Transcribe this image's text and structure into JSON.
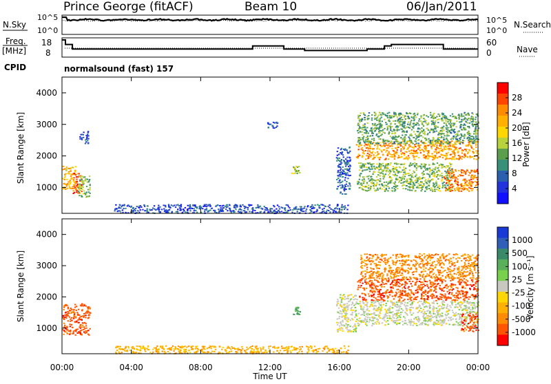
{
  "header": {
    "station": "Prince George (fitACF)",
    "beam": "Beam 10",
    "date": "06/Jan/2011"
  },
  "noise_panel": {
    "left_label": "N.Sky",
    "left_ticks": [
      "10^5",
      "10^0"
    ],
    "right_label": "N.Search",
    "right_ticks": [
      "10^5",
      "10^0"
    ]
  },
  "freq_panel": {
    "left_label_1": "Freq.",
    "left_label_2": "[MHz]",
    "left_ticks": [
      "18",
      "8"
    ],
    "right_label": "Nave",
    "right_ticks": [
      "60",
      "0"
    ],
    "cpid_label": "CPID",
    "cpid_value": "normalsound (fast) 157"
  },
  "time_axis": {
    "label": "Time UT",
    "ticks": [
      "00:00",
      "04:00",
      "08:00",
      "12:00",
      "16:00",
      "20:00",
      "00:00"
    ]
  },
  "power_panel": {
    "ylabel": "Slant Range [km]",
    "yticks": [
      "4000",
      "3000",
      "2000",
      "1000"
    ],
    "colorbar_label": "Power [dB]",
    "colorbar_ticks": [
      "28",
      "24",
      "20",
      "16",
      "12",
      "8",
      "4"
    ],
    "colors": [
      "#ff0000",
      "#ff4500",
      "#ff8c00",
      "#ffb000",
      "#ffd700",
      "#b8d23c",
      "#5a9e4e",
      "#3a8f7a",
      "#2a5fb0",
      "#2233dd",
      "#1010ff"
    ]
  },
  "velocity_panel": {
    "ylabel": "Slant Range [km]",
    "yticks": [
      "4000",
      "3000",
      "2000",
      "1000"
    ],
    "colorbar_label": "Velocity [m s⁻¹]",
    "colorbar_ticks": [
      "1000",
      "500",
      "100",
      "25",
      "-25",
      "-100",
      "-500",
      "-1000"
    ],
    "colors": [
      "#1a3ad6",
      "#2f5fb8",
      "#3a8a6a",
      "#5ab05a",
      "#78d04c",
      "#c8c8c0",
      "#ffd700",
      "#ffb000",
      "#ff8c00",
      "#ff5500",
      "#ff0000"
    ]
  },
  "chart_data": {
    "type": "heatmap",
    "x_range_hours": [
      0,
      24
    ],
    "y_range_km": [
      180,
      4500
    ],
    "power_regions": [
      {
        "t0": 0.0,
        "t1": 0.8,
        "r0": 900,
        "r1": 1700,
        "db": 22
      },
      {
        "t0": 0.6,
        "t1": 1.1,
        "r0": 800,
        "r1": 1500,
        "db": 28
      },
      {
        "t0": 0.9,
        "t1": 1.6,
        "r0": 700,
        "r1": 1400,
        "db": 14
      },
      {
        "t0": 1.0,
        "t1": 1.5,
        "r0": 2400,
        "r1": 2800,
        "db": 6
      },
      {
        "t0": 3.0,
        "t1": 16.5,
        "r0": 200,
        "r1": 480,
        "db": 5
      },
      {
        "t0": 11.8,
        "t1": 12.4,
        "r0": 2900,
        "r1": 3100,
        "db": 6
      },
      {
        "t0": 13.2,
        "t1": 13.7,
        "r0": 1450,
        "r1": 1700,
        "db": 16
      },
      {
        "t0": 15.8,
        "t1": 16.6,
        "r0": 800,
        "r1": 2300,
        "db": 6
      },
      {
        "t0": 16.9,
        "t1": 24.0,
        "r0": 1900,
        "r1": 2500,
        "db": 24
      },
      {
        "t0": 17.0,
        "t1": 24.0,
        "r0": 2400,
        "r1": 3400,
        "db": 12
      },
      {
        "t0": 17.0,
        "t1": 22.5,
        "r0": 900,
        "r1": 1800,
        "db": 14
      },
      {
        "t0": 22.0,
        "t1": 24.0,
        "r0": 900,
        "r1": 1600,
        "db": 26
      }
    ],
    "velocity_regions": [
      {
        "t0": 0.0,
        "t1": 1.6,
        "r0": 800,
        "r1": 1800,
        "v": -500
      },
      {
        "t0": 3.0,
        "t1": 16.5,
        "r0": 200,
        "r1": 450,
        "v": -100
      },
      {
        "t0": 13.2,
        "t1": 13.7,
        "r0": 1450,
        "r1": 1700,
        "v": 100
      },
      {
        "t0": 15.8,
        "t1": 17.0,
        "r0": 900,
        "r1": 2100,
        "v": 0
      },
      {
        "t0": 17.0,
        "t1": 24.0,
        "r0": 1100,
        "r1": 1900,
        "v": 0
      },
      {
        "t0": 17.0,
        "t1": 24.0,
        "r0": 1900,
        "r1": 2600,
        "v": -500
      },
      {
        "t0": 17.2,
        "t1": 24.0,
        "r0": 2600,
        "r1": 3400,
        "v": -300
      },
      {
        "t0": 23.0,
        "t1": 24.0,
        "r0": 900,
        "r1": 1500,
        "v": -500
      }
    ],
    "freq_mhz": [
      {
        "t0": 0.0,
        "t1": 0.2,
        "f": 18
      },
      {
        "t0": 0.2,
        "t1": 0.6,
        "f": 15
      },
      {
        "t0": 0.6,
        "t1": 11.0,
        "f": 12
      },
      {
        "t0": 11.0,
        "t1": 12.8,
        "f": 14
      },
      {
        "t0": 12.8,
        "t1": 14.0,
        "f": 12
      },
      {
        "t0": 14.0,
        "t1": 17.6,
        "f": 11
      },
      {
        "t0": 17.6,
        "t1": 18.6,
        "f": 12
      },
      {
        "t0": 18.6,
        "t1": 19.0,
        "f": 14
      },
      {
        "t0": 19.0,
        "t1": 22.0,
        "f": 15
      },
      {
        "t0": 22.0,
        "t1": 24.0,
        "f": 12
      }
    ]
  }
}
